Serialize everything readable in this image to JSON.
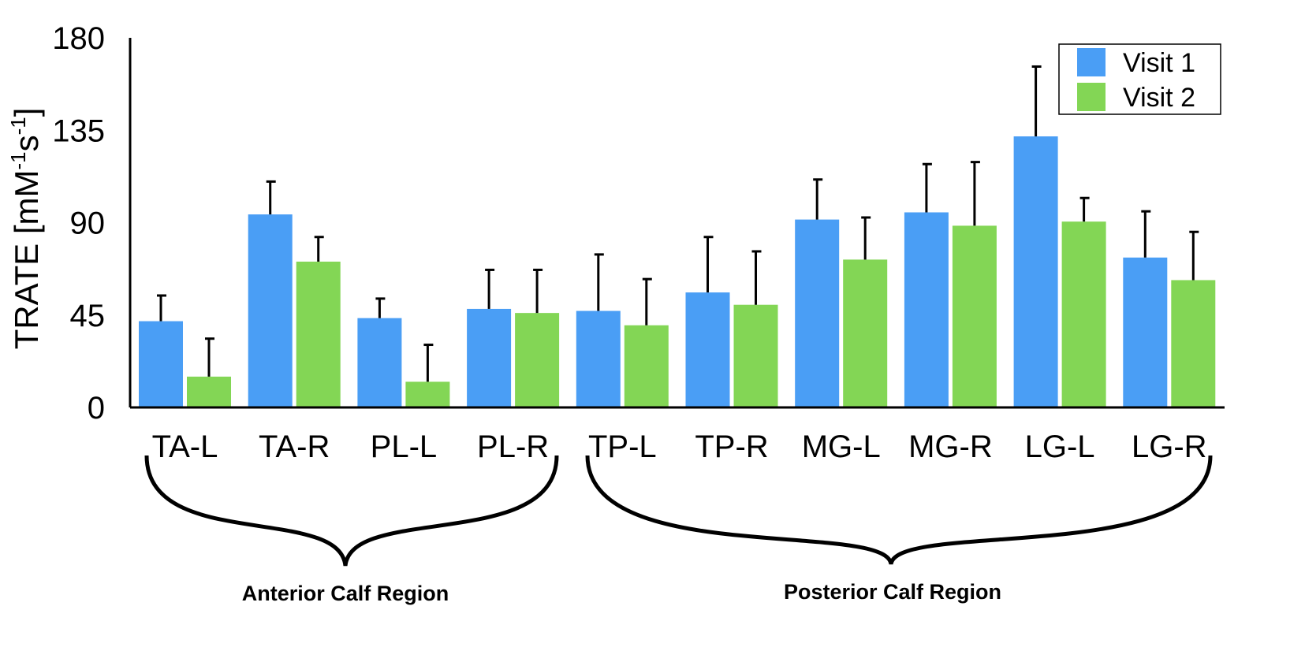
{
  "chart_data": {
    "type": "bar",
    "categories": [
      "TA-L",
      "TA-R",
      "PL-L",
      "PL-R",
      "TP-L",
      "TP-R",
      "MG-L",
      "MG-R",
      "LG-L",
      "LG-R"
    ],
    "series": [
      {
        "name": "Visit 1",
        "color": "#4A9EF5",
        "values": [
          42,
          94,
          43.5,
          48,
          47,
          56,
          91.5,
          95,
          132,
          73
        ],
        "error": [
          12.5,
          16,
          9.5,
          19,
          27.5,
          27,
          19.5,
          23.5,
          34,
          22.5
        ]
      },
      {
        "name": "Visit 2",
        "color": "#83D655",
        "values": [
          15,
          71,
          12.5,
          46,
          40,
          50,
          72,
          88.5,
          90.5,
          62
        ],
        "error": [
          18.5,
          12,
          18,
          21,
          22.5,
          26,
          20.5,
          31,
          11.5,
          23.5
        ]
      }
    ],
    "ylabel_main": "TRATE [mM",
    "ylabel_sup1": "-1",
    "ylabel_mid": "s",
    "ylabel_sup2": "-1",
    "ylabel_end": "]",
    "ylim": [
      0,
      180
    ],
    "yticks": [
      "0",
      "45",
      "90",
      "135",
      "180"
    ],
    "grid": false,
    "legend_position": "top-right",
    "groups": [
      {
        "label": "Anterior Calf Region",
        "categories": [
          "TA-L",
          "TA-R",
          "PL-L",
          "PL-R"
        ]
      },
      {
        "label": "Posterior Calf Region",
        "categories": [
          "TP-L",
          "TP-R",
          "MG-L",
          "MG-R",
          "LG-L",
          "LG-R"
        ]
      }
    ]
  }
}
